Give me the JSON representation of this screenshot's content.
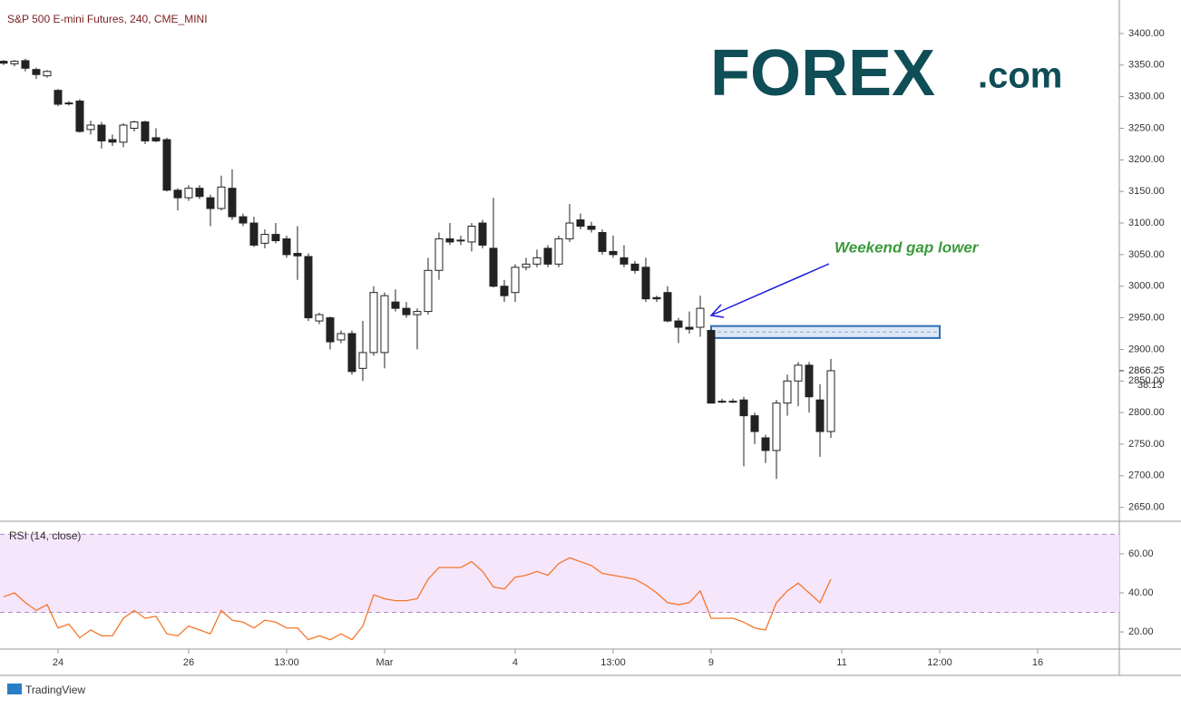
{
  "chart_data": [
    {
      "type": "candlestick",
      "title": "S&P 500 E-mini Futures, 240, CME_MINI",
      "open": [
        3356,
        3352,
        3357,
        3343,
        3333,
        3310,
        3290,
        3293,
        3248,
        3255,
        3232,
        3228,
        3250,
        3260,
        3235,
        3232,
        3152,
        3140,
        3155,
        3140,
        3123,
        3155,
        3110,
        3100,
        3068,
        3082,
        3075,
        3052,
        3047,
        2945,
        2950,
        2915,
        2925,
        2870,
        2895,
        2895,
        2975,
        2965,
        2955,
        2960,
        3025,
        3075,
        3073,
        3070,
        3100,
        3060,
        3000,
        2990,
        3030,
        3035,
        3060,
        3035,
        3075,
        3105,
        3095,
        3085,
        3055,
        3045,
        3035,
        3030,
        2982,
        2990,
        2945,
        2935,
        2935,
        2930,
        2818,
        2818,
        2820,
        2795,
        2760,
        2740,
        2815,
        2850,
        2875,
        2820,
        2770
      ],
      "high": [
        3358,
        3358,
        3360,
        3346,
        3342,
        3312,
        3293,
        3296,
        3262,
        3260,
        3240,
        3258,
        3262,
        3262,
        3250,
        3235,
        3155,
        3160,
        3160,
        3145,
        3175,
        3185,
        3115,
        3110,
        3090,
        3100,
        3080,
        3095,
        3052,
        2958,
        2952,
        2930,
        2930,
        2945,
        3000,
        2990,
        2995,
        2975,
        2965,
        3045,
        3085,
        3100,
        3080,
        3100,
        3105,
        3140,
        3010,
        3035,
        3045,
        3058,
        3065,
        3080,
        3130,
        3115,
        3102,
        3090,
        3080,
        3065,
        3040,
        3045,
        2985,
        3000,
        2950,
        2960,
        2985,
        2932,
        2822,
        2822,
        2825,
        2800,
        2765,
        2820,
        2860,
        2880,
        2880,
        2845,
        2885
      ],
      "low": [
        3350,
        3348,
        3340,
        3328,
        3330,
        3285,
        3286,
        3243,
        3240,
        3218,
        3222,
        3220,
        3245,
        3225,
        3228,
        3150,
        3120,
        3135,
        3138,
        3095,
        3120,
        3105,
        3095,
        3062,
        3060,
        3068,
        3045,
        3010,
        2945,
        2940,
        2900,
        2910,
        2860,
        2850,
        2890,
        2870,
        2960,
        2950,
        2900,
        2955,
        3010,
        3065,
        3065,
        3055,
        3060,
        2998,
        2975,
        2975,
        3025,
        3030,
        3030,
        3030,
        3070,
        3090,
        3085,
        3050,
        3045,
        3030,
        3020,
        2975,
        2975,
        2943,
        2910,
        2925,
        2920,
        2815,
        2815,
        2815,
        2715,
        2750,
        2720,
        2695,
        2795,
        2810,
        2800,
        2730,
        2760
      ],
      "close": [
        3353,
        3356,
        3345,
        3335,
        3340,
        3288,
        3289,
        3245,
        3255,
        3230,
        3228,
        3255,
        3260,
        3230,
        3230,
        3152,
        3140,
        3155,
        3142,
        3123,
        3157,
        3110,
        3100,
        3065,
        3082,
        3072,
        3050,
        3048,
        2950,
        2955,
        2912,
        2925,
        2865,
        2895,
        2990,
        2985,
        2965,
        2955,
        2960,
        3025,
        3075,
        3070,
        3072,
        3095,
        3065,
        3000,
        2985,
        3030,
        3035,
        3045,
        3035,
        3075,
        3100,
        3095,
        3090,
        3055,
        3050,
        3035,
        3025,
        2980,
        2980,
        2945,
        2935,
        2932,
        2965,
        2815,
        2818,
        2817,
        2795,
        2770,
        2740,
        2815,
        2850,
        2875,
        2825,
        2770,
        2866.25
      ],
      "up_color": "#ffffff",
      "down_color": "#222222",
      "ylim": [
        2628,
        3453
      ],
      "xlim": [
        -0.33,
        102.5
      ],
      "yticks": [
        {
          "value": 2650,
          "label": "2650.00"
        },
        {
          "value": 2700,
          "label": "2700.00"
        },
        {
          "value": 2750,
          "label": "2750.00"
        },
        {
          "value": 2800,
          "label": "2800.00"
        },
        {
          "value": 2850,
          "label": "2850.00"
        },
        {
          "value": 2900,
          "label": "2900.00"
        },
        {
          "value": 2950,
          "label": "2950.00"
        },
        {
          "value": 3000,
          "label": "3000.00"
        },
        {
          "value": 3050,
          "label": "3050.00"
        },
        {
          "value": 3100,
          "label": "3100.00"
        },
        {
          "value": 3150,
          "label": "3150.00"
        },
        {
          "value": 3200,
          "label": "3200.00"
        },
        {
          "value": 3250,
          "label": "3250.00"
        },
        {
          "value": 3300,
          "label": "3300.00"
        },
        {
          "value": 3350,
          "label": "3350.00"
        },
        {
          "value": 3400,
          "label": "3400.00"
        }
      ],
      "xticks": [
        {
          "value": 5,
          "label": "24"
        },
        {
          "value": 17,
          "label": "26"
        },
        {
          "value": 26,
          "label": "13:00"
        },
        {
          "value": 35,
          "label": "Mar"
        },
        {
          "value": 47,
          "label": "4"
        },
        {
          "value": 56,
          "label": "13:00"
        },
        {
          "value": 65,
          "label": "9"
        },
        {
          "value": 77,
          "label": "11"
        },
        {
          "value": 86,
          "label": "12:00"
        },
        {
          "value": 95,
          "label": "16"
        }
      ],
      "last_price": {
        "value": 2866.25,
        "label": "2866.25"
      },
      "countdown": "38:13",
      "annotation": "Weekend gap lower",
      "gap_zone": {
        "from": 2918,
        "to": 2937,
        "x": [
          65,
          86
        ]
      },
      "logo": {
        "brand": "FOREX",
        "suffix": ".com"
      },
      "footer": "TradingView"
    },
    {
      "type": "line",
      "title": "RSI (14, close)",
      "color": "#f4762b",
      "values": [
        38,
        40,
        35,
        31,
        34,
        22,
        24,
        17,
        21,
        18,
        18,
        27,
        31,
        27,
        28,
        19,
        18,
        23,
        21,
        19,
        31,
        26,
        25,
        22,
        26,
        25,
        22,
        22,
        16,
        18,
        16,
        19,
        16,
        23,
        39,
        37,
        36,
        36,
        37,
        47,
        53,
        53,
        53,
        56,
        51,
        43,
        42,
        48,
        49,
        51,
        49,
        55,
        58,
        56,
        54,
        50,
        49,
        48,
        47,
        44,
        40,
        35,
        34,
        35,
        41,
        27,
        27,
        27,
        25,
        22,
        21,
        35,
        41,
        45,
        40,
        35,
        47
      ],
      "ylim": [
        11.2,
        76.7
      ],
      "bands": [
        30,
        70
      ],
      "yticks": [
        {
          "value": 20,
          "label": "20.00"
        },
        {
          "value": 40,
          "label": "40.00"
        },
        {
          "value": 60,
          "label": "60.00"
        }
      ]
    }
  ]
}
